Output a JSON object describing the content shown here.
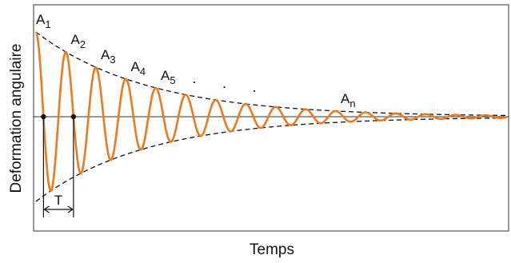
{
  "chart_data": {
    "type": "line",
    "title": "",
    "xlabel": "Temps",
    "ylabel": "Deformation angulaire",
    "grid": false,
    "legend": "none",
    "xlim": [
      0,
      20
    ],
    "ylim": [
      -1.2,
      1.2
    ],
    "series": [
      {
        "kind": "damped-oscillation",
        "amplitude_start": 1.0,
        "decay_rate": 0.27,
        "period": 1.0
      },
      {
        "kind": "upper-envelope",
        "style": "dashed"
      },
      {
        "kind": "lower-envelope",
        "style": "dashed"
      }
    ],
    "annotations": {
      "peaks": [
        {
          "base": "A",
          "sub": "1",
          "x": 0
        },
        {
          "base": "A",
          "sub": "2",
          "x": 1
        },
        {
          "base": "A",
          "sub": "3",
          "x": 2
        },
        {
          "base": "A",
          "sub": "4",
          "x": 3
        },
        {
          "base": "A",
          "sub": "5",
          "x": 4
        },
        {
          "base": "A",
          "sub": "n",
          "x": 10
        }
      ],
      "dots": [
        "·",
        "·",
        "·"
      ],
      "period_label": "T",
      "period_span": [
        1,
        2
      ]
    },
    "colors": {
      "signal": "#ee7a1f",
      "ylabel": "#ee7a1f",
      "envelope": "#111111",
      "axis": "#333333"
    }
  }
}
